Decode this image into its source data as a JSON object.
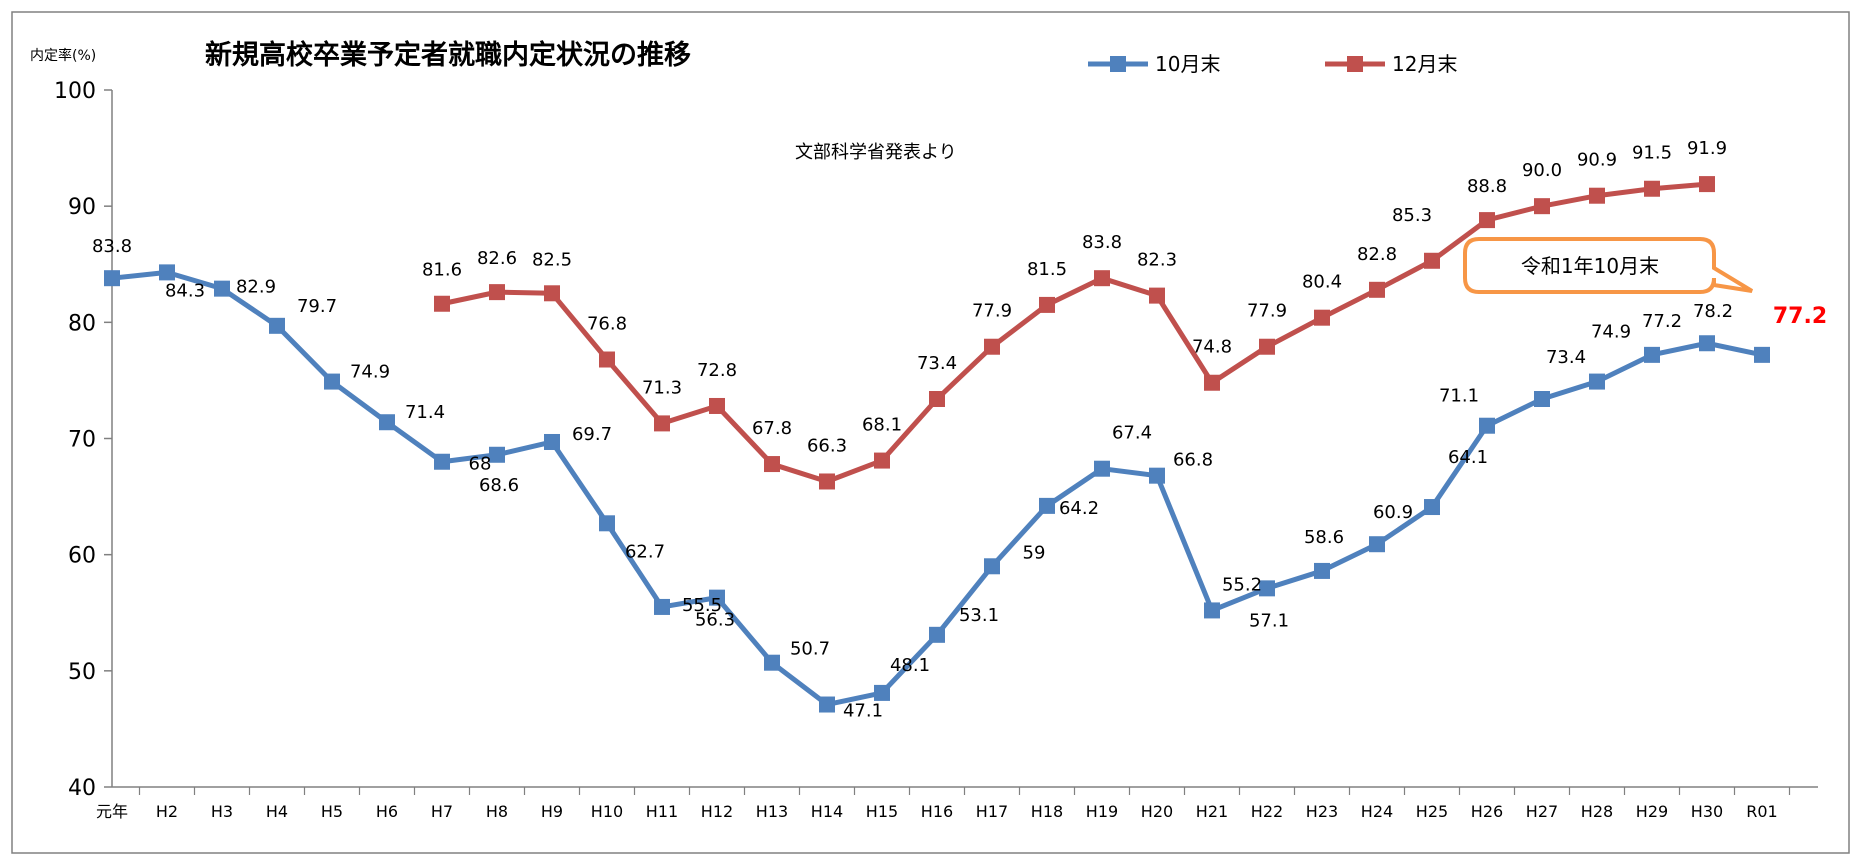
{
  "chart_data": {
    "type": "line",
    "title": "新規高校卒業予定者就職内定状況の推移",
    "source_note": "文部科学省発表より",
    "ylabel": "内定率(%)",
    "ylim": [
      40,
      100
    ],
    "yticks": [
      "40",
      "50",
      "60",
      "70",
      "80",
      "90",
      "100"
    ],
    "categories": [
      "元年",
      "H2",
      "H3",
      "H4",
      "H5",
      "H6",
      "H7",
      "H8",
      "H9",
      "H10",
      "H11",
      "H12",
      "H13",
      "H14",
      "H15",
      "H16",
      "H17",
      "H18",
      "H19",
      "H20",
      "H21",
      "H22",
      "H23",
      "H24",
      "H25",
      "H26",
      "H27",
      "H28",
      "H29",
      "H30",
      "R01"
    ],
    "legend_position": "top-right",
    "series": [
      {
        "name": "10月末",
        "color": "#4F81BD",
        "values": [
          83.8,
          84.3,
          82.9,
          79.7,
          74.9,
          71.4,
          68.0,
          68.6,
          69.7,
          62.7,
          55.5,
          56.3,
          50.7,
          47.1,
          48.1,
          53.1,
          59.0,
          64.2,
          67.4,
          66.8,
          55.2,
          57.1,
          58.6,
          60.9,
          64.1,
          71.1,
          73.4,
          74.9,
          77.2,
          78.2,
          77.2
        ],
        "labels": [
          "83.8",
          "84.3",
          "82.9",
          "79.7",
          "74.9",
          "71.4",
          "68",
          "68.6",
          "69.7",
          "62.7",
          "55.5",
          "56.3",
          "50.7",
          "47.1",
          "48.1",
          "53.1",
          "59",
          "64.2",
          "67.4",
          "66.8",
          "55.2",
          "57.1",
          "58.6",
          "60.9",
          "64.1",
          "71.1",
          "73.4",
          "74.9",
          "77.2",
          "78.2",
          "77.2"
        ]
      },
      {
        "name": "12月末",
        "color": "#C0504D",
        "values": [
          null,
          null,
          null,
          null,
          null,
          null,
          81.6,
          82.6,
          82.5,
          76.8,
          71.3,
          72.8,
          67.8,
          66.3,
          68.1,
          73.4,
          77.9,
          81.5,
          83.8,
          82.3,
          74.8,
          77.9,
          80.4,
          82.8,
          85.3,
          88.8,
          90.0,
          90.9,
          91.5,
          91.9,
          null
        ],
        "labels": [
          null,
          null,
          null,
          null,
          null,
          null,
          "81.6",
          "82.6",
          "82.5",
          "76.8",
          "71.3",
          "72.8",
          "67.8",
          "66.3",
          "68.1",
          "73.4",
          "77.9",
          "81.5",
          "83.8",
          "82.3",
          "74.8",
          "77.9",
          "80.4",
          "82.8",
          "85.3",
          "88.8",
          "90.0",
          "90.9",
          "91.5",
          "91.9",
          null
        ]
      }
    ],
    "annotation": {
      "text": "令和1年10月末",
      "border_color": "#F79646",
      "highlight_label": "77.2",
      "highlight_color": "#FF0000"
    }
  }
}
